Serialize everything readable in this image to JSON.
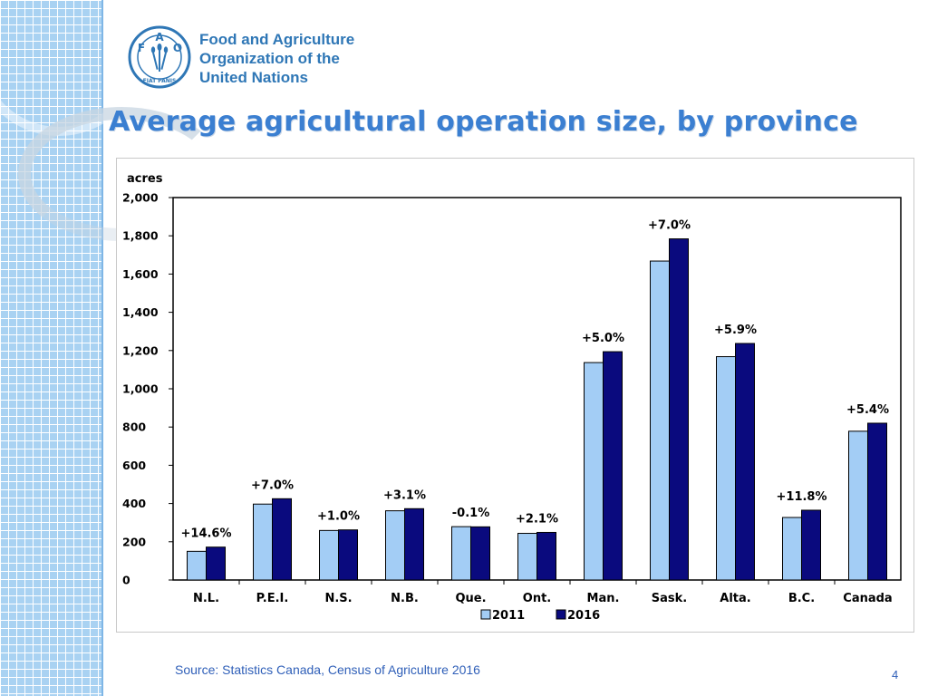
{
  "header": {
    "org_name_lines": [
      "Food and Agriculture",
      "Organization of the",
      "United Nations"
    ],
    "title": "Average agricultural operation size, by province"
  },
  "logo": {
    "letters": [
      "F",
      "A",
      "O"
    ],
    "motto": "FIAT PANIS",
    "color": "#2f77b6"
  },
  "chart_data": {
    "type": "bar",
    "ylabel": "acres",
    "ylim": [
      0,
      2000
    ],
    "yticks": [
      0,
      200,
      400,
      600,
      800,
      1000,
      1200,
      1400,
      1600,
      1800,
      2000
    ],
    "ytick_labels": [
      "0",
      "200",
      "400",
      "600",
      "800",
      "1,000",
      "1,200",
      "1,400",
      "1,600",
      "1,800",
      "2,000"
    ],
    "categories": [
      "N.L.",
      "P.E.I.",
      "N.S.",
      "N.B.",
      "Que.",
      "Ont.",
      "Man.",
      "Sask.",
      "Alta.",
      "B.C.",
      "Canada"
    ],
    "series": [
      {
        "name": "2011",
        "color": "#a3cdf5",
        "values": [
          150,
          397,
          259,
          362,
          279,
          244,
          1137,
          1668,
          1168,
          327,
          778
        ]
      },
      {
        "name": "2016",
        "color": "#0a0a7e",
        "values": [
          172,
          425,
          262,
          373,
          278,
          249,
          1194,
          1784,
          1237,
          365,
          820
        ]
      }
    ],
    "annotations": [
      "+14.6%",
      "+7.0%",
      "+1.0%",
      "+3.1%",
      "-0.1%",
      "+2.1%",
      "+5.0%",
      "+7.0%",
      "+5.9%",
      "+11.8%",
      "+5.4%"
    ],
    "legend_position": "bottom",
    "grid": false
  },
  "footer": {
    "source": "Source: Statistics Canada, Census of Agriculture 2016",
    "page_number": "4"
  }
}
